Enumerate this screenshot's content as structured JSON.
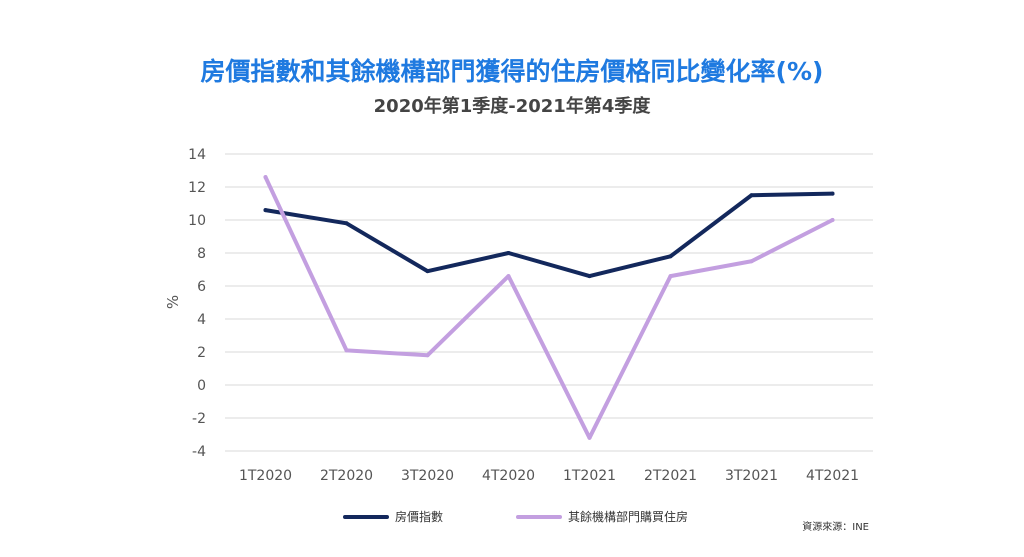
{
  "chart_data": {
    "type": "line",
    "title": "房價指數和其餘機構部門獲得的住房價格同比變化率(%)",
    "subtitle": "2020年第1季度-2021年第4季度",
    "ylabel": "%",
    "ylim": [
      -4,
      14
    ],
    "yticks": [
      14,
      12,
      10,
      8,
      6,
      4,
      2,
      0,
      -2,
      -4
    ],
    "categories": [
      "1T2020",
      "2T2020",
      "3T2020",
      "4T2020",
      "1T2021",
      "2T2021",
      "3T2021",
      "4T2021"
    ],
    "series": [
      {
        "name": "房價指數",
        "color": "#13285c",
        "values": [
          10.6,
          9.8,
          6.9,
          8.0,
          6.6,
          7.8,
          11.5,
          11.6
        ]
      },
      {
        "name": "其餘機構部門購買住房",
        "color": "#c39fe0",
        "values": [
          12.6,
          2.1,
          1.8,
          6.6,
          -3.2,
          6.6,
          7.5,
          10.0
        ]
      }
    ],
    "grid": true,
    "legend_position": "bottom-center",
    "source": "資源來源：INE"
  }
}
